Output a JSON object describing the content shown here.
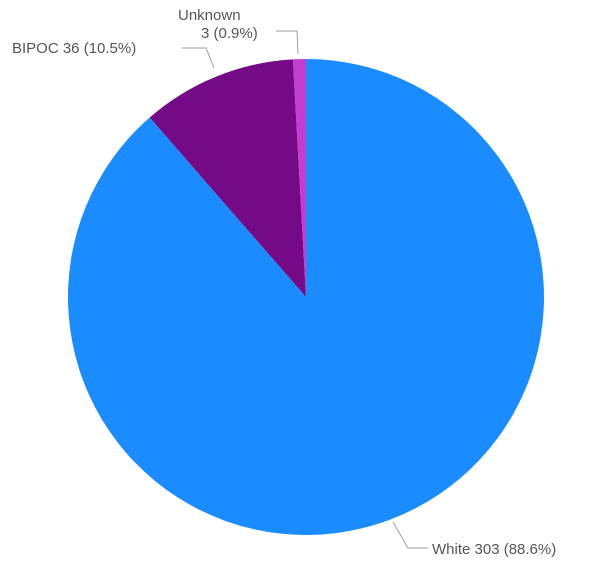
{
  "chart_data": {
    "type": "pie",
    "title": "",
    "slices": [
      {
        "label": "White",
        "value": 303,
        "percent": "88.6%",
        "color": "#1a8cff"
      },
      {
        "label": "BIPOC",
        "value": 36,
        "percent": "10.5%",
        "color": "#740a85"
      },
      {
        "label": "Unknown",
        "value": 3,
        "percent": "0.9%",
        "color": "#c13ecf"
      }
    ],
    "data_labels": {
      "white": "White 303 (88.6%)",
      "bipoc": "BIPOC 36 (10.5%)",
      "unknown_line1": "Unknown",
      "unknown_line2": "3 (0.9%)"
    },
    "start_angle": "12 o'clock",
    "direction": "clockwise",
    "legend": "none"
  }
}
